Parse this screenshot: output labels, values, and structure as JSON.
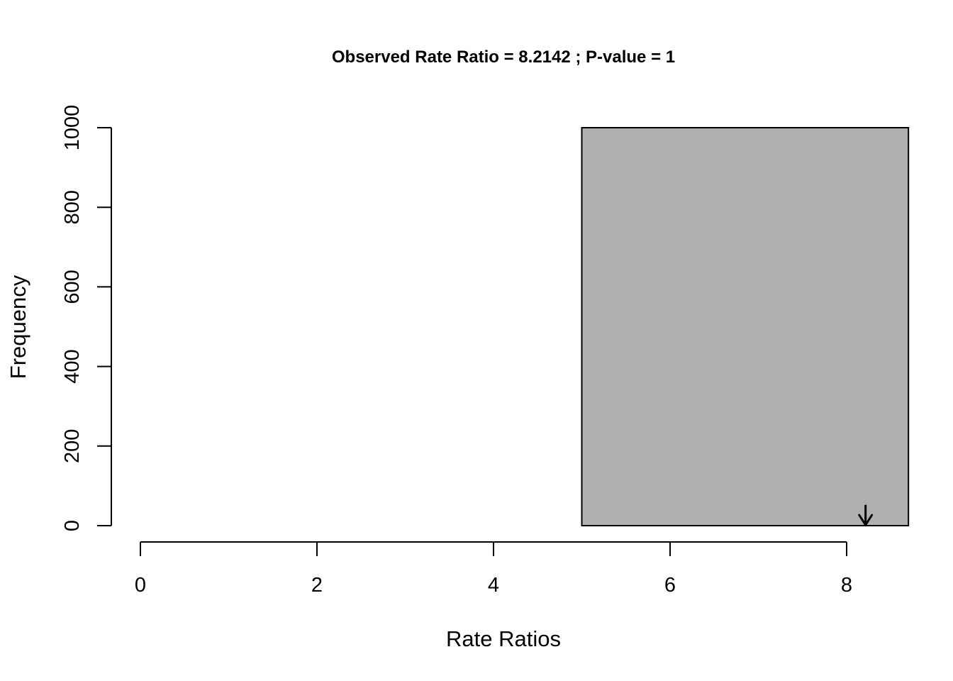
{
  "chart_data": {
    "type": "bar",
    "title": "Observed Rate Ratio = 8.2142 ; P-value = 1",
    "xlabel": "Rate Ratios",
    "ylabel": "Frequency",
    "xlim": [
      0,
      8.7
    ],
    "ylim": [
      0,
      1000
    ],
    "x_ticks": [
      0,
      2,
      4,
      6,
      8
    ],
    "y_ticks": [
      0,
      200,
      400,
      600,
      800,
      1000
    ],
    "bins": [
      {
        "x_start": 5,
        "x_end": 8.7,
        "count": 1000
      }
    ],
    "observed_value": 8.2142,
    "bar_color": "#b0b0b0",
    "grid": false
  }
}
